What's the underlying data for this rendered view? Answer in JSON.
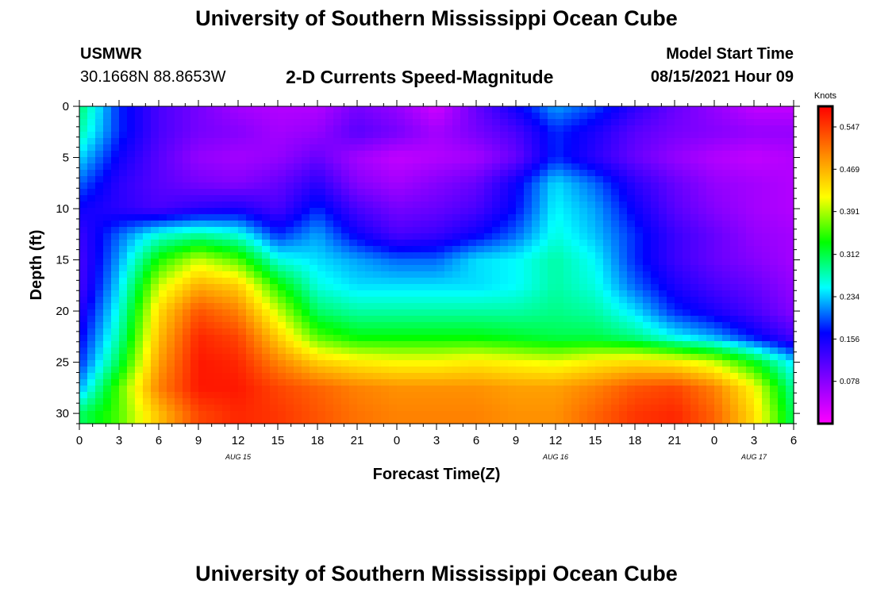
{
  "header": {
    "title": "University of Southern Mississippi Ocean Cube",
    "station_id": "USMWR",
    "station_coords": "30.1668N  88.8653W",
    "chart_title": "2-D Currents Speed-Magnitude",
    "model_start_label": "Model Start Time",
    "model_start_value": "08/15/2021 Hour 09"
  },
  "footer": {
    "title": "University of Southern Mississippi Ocean Cube"
  },
  "chart_data": {
    "type": "heatmap",
    "title": "2-D Currents Speed-Magnitude",
    "xlabel": "Forecast Time(Z)",
    "ylabel": "Depth (ft)",
    "x_unit": "hours since 08/15/2021 00Z",
    "x": [
      0,
      3,
      6,
      9,
      12,
      15,
      18,
      21,
      24,
      27,
      30,
      33,
      36,
      39,
      42,
      45,
      48,
      51,
      54
    ],
    "x_tick_labels": [
      "0",
      "3",
      "6",
      "9",
      "12",
      "15",
      "18",
      "21",
      "0",
      "3",
      "6",
      "9",
      "12",
      "15",
      "18",
      "21",
      "0",
      "3",
      "6"
    ],
    "x_date_labels": [
      {
        "hour": 12,
        "label": "AUG 15"
      },
      {
        "hour": 36,
        "label": "AUG 16"
      },
      {
        "hour": 51,
        "label": "AUG 17"
      }
    ],
    "xlim": [
      0,
      54
    ],
    "y": [
      0,
      2.5,
      5,
      7.5,
      10,
      12.5,
      15,
      17.5,
      20,
      22.5,
      25,
      27.5,
      30
    ],
    "y_ticks": [
      0,
      5,
      10,
      15,
      20,
      25,
      30
    ],
    "ylim": [
      0,
      31
    ],
    "y_inverted": true,
    "colorbar": {
      "label": "Knots",
      "ticks": [
        0.078,
        0.156,
        0.234,
        0.312,
        0.391,
        0.469,
        0.547
      ],
      "tick_labels": [
        "0.078",
        "0.156",
        "0.234",
        "0.312",
        "0.391",
        "0.469",
        "0.547"
      ],
      "range": [
        0.0,
        0.585
      ],
      "colors": [
        "#ff00ff",
        "#8000ff",
        "#0000ff",
        "#00ffff",
        "#00ff00",
        "#ffff00",
        "#ff8000",
        "#ff0000"
      ]
    },
    "values": [
      [
        0.3,
        0.18,
        0.12,
        0.09,
        0.06,
        0.05,
        0.05,
        0.09,
        0.07,
        0.03,
        0.1,
        0.16,
        0.22,
        0.19,
        0.14,
        0.1,
        0.07,
        0.04,
        0.04
      ],
      [
        0.28,
        0.18,
        0.12,
        0.09,
        0.08,
        0.06,
        0.07,
        0.11,
        0.09,
        0.06,
        0.09,
        0.12,
        0.18,
        0.15,
        0.11,
        0.09,
        0.08,
        0.07,
        0.07
      ],
      [
        0.24,
        0.16,
        0.11,
        0.07,
        0.06,
        0.07,
        0.1,
        0.06,
        0.04,
        0.05,
        0.06,
        0.1,
        0.18,
        0.14,
        0.1,
        0.07,
        0.05,
        0.04,
        0.05
      ],
      [
        0.2,
        0.14,
        0.11,
        0.09,
        0.08,
        0.1,
        0.14,
        0.08,
        0.06,
        0.08,
        0.1,
        0.16,
        0.24,
        0.2,
        0.14,
        0.1,
        0.07,
        0.06,
        0.05
      ],
      [
        0.16,
        0.14,
        0.12,
        0.14,
        0.15,
        0.12,
        0.18,
        0.12,
        0.09,
        0.1,
        0.12,
        0.17,
        0.25,
        0.22,
        0.16,
        0.11,
        0.08,
        0.06,
        0.05
      ],
      [
        0.13,
        0.2,
        0.26,
        0.28,
        0.26,
        0.18,
        0.22,
        0.16,
        0.12,
        0.13,
        0.16,
        0.2,
        0.26,
        0.23,
        0.18,
        0.13,
        0.1,
        0.07,
        0.06
      ],
      [
        0.12,
        0.22,
        0.34,
        0.4,
        0.36,
        0.26,
        0.24,
        0.22,
        0.2,
        0.2,
        0.24,
        0.25,
        0.28,
        0.25,
        0.18,
        0.13,
        0.1,
        0.08,
        0.06
      ],
      [
        0.12,
        0.24,
        0.4,
        0.47,
        0.45,
        0.34,
        0.26,
        0.24,
        0.24,
        0.24,
        0.24,
        0.25,
        0.28,
        0.26,
        0.2,
        0.15,
        0.12,
        0.1,
        0.07
      ],
      [
        0.14,
        0.26,
        0.44,
        0.53,
        0.5,
        0.4,
        0.3,
        0.28,
        0.28,
        0.28,
        0.28,
        0.28,
        0.29,
        0.28,
        0.24,
        0.18,
        0.15,
        0.12,
        0.08
      ],
      [
        0.16,
        0.28,
        0.46,
        0.56,
        0.54,
        0.45,
        0.36,
        0.33,
        0.33,
        0.33,
        0.33,
        0.32,
        0.31,
        0.31,
        0.29,
        0.25,
        0.22,
        0.17,
        0.12
      ],
      [
        0.18,
        0.31,
        0.48,
        0.57,
        0.56,
        0.5,
        0.45,
        0.43,
        0.42,
        0.42,
        0.43,
        0.42,
        0.41,
        0.43,
        0.44,
        0.43,
        0.4,
        0.33,
        0.24
      ],
      [
        0.22,
        0.36,
        0.5,
        0.57,
        0.57,
        0.54,
        0.52,
        0.5,
        0.49,
        0.49,
        0.49,
        0.48,
        0.48,
        0.5,
        0.53,
        0.54,
        0.5,
        0.42,
        0.28
      ],
      [
        0.3,
        0.36,
        0.46,
        0.54,
        0.56,
        0.55,
        0.53,
        0.51,
        0.5,
        0.5,
        0.5,
        0.49,
        0.49,
        0.52,
        0.55,
        0.56,
        0.52,
        0.44,
        0.3
      ]
    ]
  }
}
